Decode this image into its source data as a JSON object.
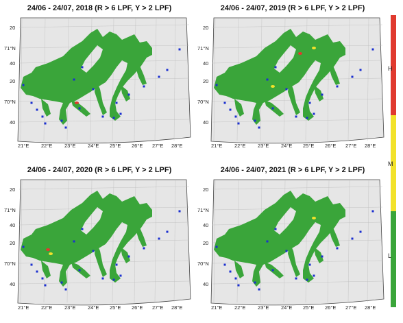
{
  "panels": [
    {
      "title": "24/06 - 24/07, 2018 (R > 6 LPF, Y > 2 LPF)",
      "hotspots": [
        {
          "lvl": "H"
        }
      ]
    },
    {
      "title": "24/06 - 24/07, 2019 (R > 6 LPF, Y > 2 LPF)",
      "hotspots": [
        {
          "lvl": "H"
        },
        {
          "lvl": "M"
        },
        {
          "lvl": "M"
        }
      ]
    },
    {
      "title": "24/06 - 24/07, 2020 (R > 6 LPF, Y > 2 LPF)",
      "hotspots": [
        {
          "lvl": "H"
        },
        {
          "lvl": "M"
        }
      ]
    },
    {
      "title": "24/06 - 24/07, 2021 (R > 6 LPF, Y > 2 LPF)",
      "hotspots": [
        {
          "lvl": "M"
        }
      ]
    }
  ],
  "axes": {
    "lon_labels": [
      "21°E",
      "22°E",
      "23°E",
      "24°E",
      "25°E",
      "26°E",
      "27°E",
      "28°E"
    ],
    "lat_labels": [
      "20",
      "71°N",
      "40",
      "20",
      "70°N",
      "40"
    ]
  },
  "legend": {
    "levels": [
      {
        "key": "H",
        "label": "H",
        "color": "#e03a2f"
      },
      {
        "key": "M",
        "label": "M",
        "color": "#f2e22a"
      },
      {
        "key": "L",
        "label": "L",
        "color": "#3aa53a"
      }
    ]
  },
  "colors": {
    "sea": "#3aa53a",
    "land": "#e6e6e6",
    "station": "#1a2fd0",
    "grid": "#bdbdbd"
  }
}
